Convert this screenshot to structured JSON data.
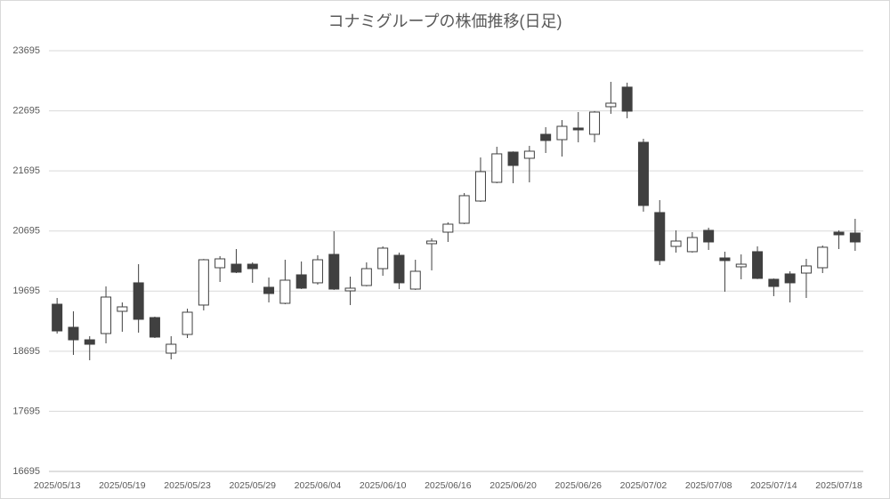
{
  "chart_data": {
    "type": "candlestick",
    "title": "コナミグループの株価推移(日足)",
    "categories": [
      "2025/05/13",
      null,
      null,
      null,
      "2025/05/19",
      null,
      null,
      null,
      "2025/05/23",
      null,
      null,
      null,
      "2025/05/29",
      null,
      null,
      null,
      "2025/06/04",
      null,
      null,
      null,
      "2025/06/10",
      null,
      null,
      null,
      "2025/06/16",
      null,
      null,
      null,
      "2025/06/20",
      null,
      null,
      null,
      "2025/06/26",
      null,
      null,
      null,
      "2025/07/02",
      null,
      null,
      null,
      "2025/07/08",
      null,
      null,
      null,
      "2025/07/14",
      null,
      null,
      null,
      "2025/07/18",
      null
    ],
    "open": [
      19477,
      19093,
      18885,
      18989,
      19359,
      19833,
      19255,
      18663,
      18974,
      19463,
      20084,
      20143,
      20143,
      19759,
      19492,
      19966,
      19833,
      20306,
      19699,
      19788,
      20069,
      20291,
      19729,
      20484,
      20676,
      20824,
      21194,
      21505,
      22008,
      21905,
      22304,
      22215,
      22408,
      22304,
      22763,
      23089,
      22171,
      21002,
      20439,
      20351,
      20706,
      20247,
      20099,
      20351,
      19892,
      19981,
      19995,
      20084,
      20676,
      20661
    ],
    "high": [
      19581,
      19359,
      18945,
      19773,
      19507,
      20143,
      19270,
      18945,
      19403,
      20230,
      20277,
      20395,
      20173,
      19921,
      20217,
      20188,
      20291,
      20691,
      19936,
      20173,
      20439,
      20336,
      20217,
      20573,
      20839,
      21327,
      21919,
      22097,
      22020,
      22112,
      22423,
      22541,
      22674,
      22690,
      23177,
      23163,
      22230,
      21209,
      20706,
      20676,
      20750,
      20351,
      20306,
      20439,
      19905,
      20025,
      20232,
      20454,
      20706,
      20898
    ],
    "low": [
      18989,
      18634,
      18545,
      18826,
      19019,
      19004,
      18915,
      18560,
      18915,
      19374,
      19847,
      19995,
      19833,
      19507,
      19477,
      19730,
      19803,
      19715,
      19463,
      19775,
      19951,
      19729,
      19715,
      20040,
      20513,
      20810,
      21180,
      21490,
      21490,
      21505,
      21993,
      21934,
      22171,
      22171,
      22645,
      22571,
      21017,
      20129,
      20336,
      20336,
      20380,
      19685,
      19892,
      19895,
      19611,
      19507,
      19581,
      19995,
      20395,
      20365
    ],
    "close": [
      19033,
      18885,
      18811,
      19596,
      19433,
      19226,
      18930,
      18811,
      19344,
      20217,
      20232,
      20010,
      20069,
      19655,
      19877,
      19744,
      20217,
      19729,
      19744,
      20069,
      20410,
      19833,
      20025,
      20528,
      20809,
      21283,
      21683,
      21979,
      21786,
      22023,
      22201,
      22437,
      22378,
      22674,
      22822,
      22689,
      21120,
      20203,
      20528,
      20587,
      20513,
      20203,
      20143,
      19907,
      19773,
      19833,
      20114,
      20425,
      20632,
      20513
    ],
    "up_color": "#ffffff",
    "down_color": "#404040",
    "ylim": [
      16695,
      23695
    ],
    "yticks": [
      16695,
      17695,
      18695,
      19695,
      20695,
      21695,
      22695,
      23695
    ],
    "grid": true
  }
}
